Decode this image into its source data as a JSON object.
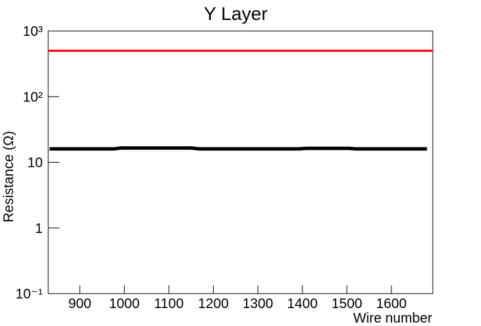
{
  "chart_data": {
    "type": "line",
    "title": "Y Layer",
    "x_label": "Wire number",
    "y_label": "Resistance (Ω)",
    "log_y": true,
    "xlim": [
      829,
      1693
    ],
    "xticks": [
      900,
      1000,
      1100,
      1200,
      1300,
      1400,
      1500,
      1600
    ],
    "ylim": [
      0.1,
      1000
    ],
    "yticks": [
      {
        "value": 0.1,
        "label": "10⁻¹"
      },
      1,
      10,
      {
        "value": 100,
        "label": "10²"
      },
      {
        "value": 1000,
        "label": "10³"
      }
    ],
    "series": [
      {
        "color": "#ff0000",
        "x": [
          829,
          1693
        ],
        "values": [
          500,
          500
        ]
      },
      {
        "color": "#000000",
        "x": [
          832,
          848,
          864,
          880,
          896,
          912,
          928,
          944,
          960,
          976,
          992,
          1008,
          1024,
          1040,
          1056,
          1072,
          1088,
          1104,
          1120,
          1136,
          1152,
          1168,
          1184,
          1200,
          1216,
          1232,
          1248,
          1264,
          1280,
          1296,
          1312,
          1328,
          1344,
          1360,
          1376,
          1392,
          1408,
          1424,
          1440,
          1456,
          1472,
          1488,
          1504,
          1520,
          1536,
          1552,
          1568,
          1584,
          1600,
          1616,
          1632,
          1648,
          1664,
          1680
        ],
        "values": [
          16,
          16,
          16,
          16,
          16,
          16,
          16,
          16,
          16,
          16,
          16.5,
          16.5,
          16.5,
          16.5,
          16.5,
          16.5,
          16.5,
          16.5,
          16.5,
          16.5,
          16.5,
          16,
          16,
          16,
          16,
          16,
          16,
          16,
          16,
          16,
          16,
          16,
          16,
          16,
          16,
          16,
          16.3,
          16.3,
          16.3,
          16.3,
          16.3,
          16.3,
          16.3,
          16,
          16,
          16,
          16,
          16,
          16,
          16,
          16,
          16,
          16,
          16
        ]
      }
    ]
  }
}
